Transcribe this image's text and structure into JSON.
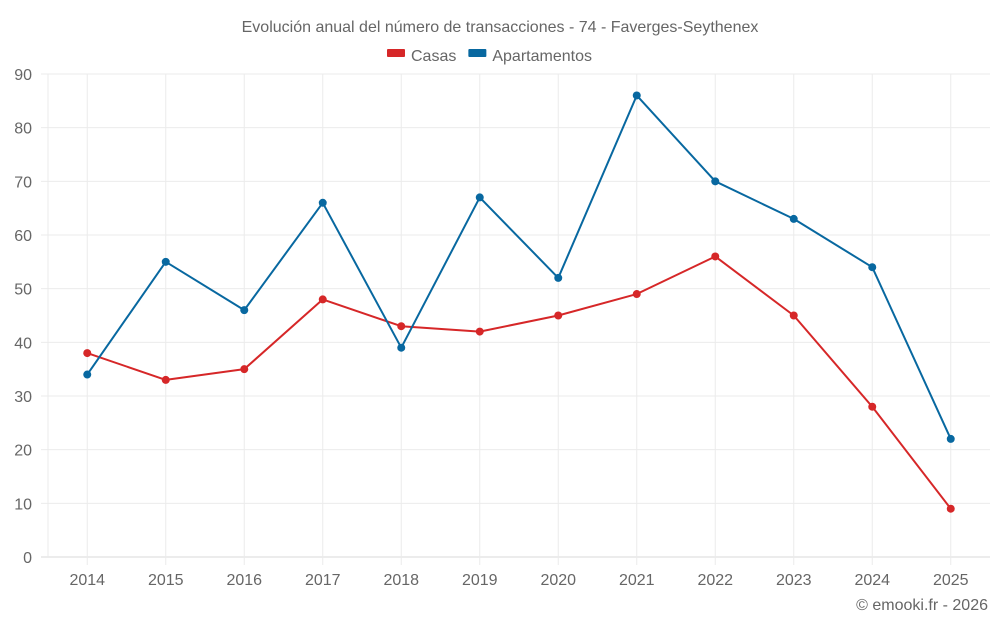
{
  "chart_data": {
    "type": "line",
    "title": "Evolución anual del número de transacciones - 74 - Faverges-Seythenex",
    "xlabel": "",
    "ylabel": "",
    "categories": [
      "2014",
      "2015",
      "2016",
      "2017",
      "2018",
      "2019",
      "2020",
      "2021",
      "2022",
      "2023",
      "2024",
      "2025"
    ],
    "ylim": [
      0,
      90
    ],
    "yticks": [
      0,
      10,
      20,
      30,
      40,
      50,
      60,
      70,
      80,
      90
    ],
    "grid": true,
    "legend_position": "top-center",
    "series": [
      {
        "name": "Casas",
        "color": "#d62728",
        "values": [
          38,
          33,
          35,
          48,
          43,
          42,
          45,
          49,
          56,
          45,
          28,
          9
        ]
      },
      {
        "name": "Apartamentos",
        "color": "#0868a0",
        "values": [
          34,
          55,
          46,
          66,
          39,
          67,
          52,
          86,
          70,
          63,
          54,
          22
        ]
      }
    ]
  },
  "credit": "© emooki.fr - 2026"
}
